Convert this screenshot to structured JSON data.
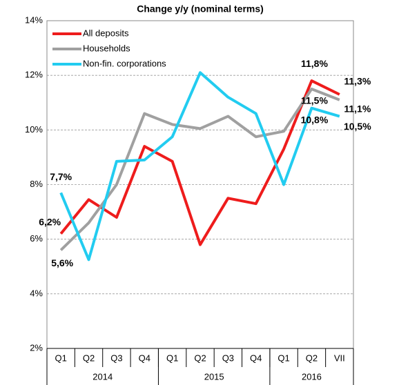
{
  "chart_data": {
    "type": "line",
    "title": "Change y/y (nominal terms)",
    "categories": [
      "Q1",
      "Q2",
      "Q3",
      "Q4",
      "Q1",
      "Q2",
      "Q3",
      "Q4",
      "Q1",
      "Q2",
      "VII"
    ],
    "x_groups": [
      {
        "label": "2014",
        "count": 4
      },
      {
        "label": "2015",
        "count": 4
      },
      {
        "label": "2016",
        "count": 3
      }
    ],
    "series": [
      {
        "name": "All deposits",
        "color": "#ee1c1c",
        "values": [
          6.2,
          7.45,
          6.8,
          9.4,
          8.85,
          5.8,
          7.5,
          7.3,
          9.3,
          11.8,
          11.3
        ],
        "value_labels": [
          "6,2%",
          null,
          null,
          null,
          null,
          null,
          null,
          null,
          null,
          "11,8%",
          "11,3%"
        ]
      },
      {
        "name": "Households",
        "color": "#a0a0a0",
        "values": [
          5.6,
          6.6,
          8.0,
          10.6,
          10.2,
          10.05,
          10.5,
          9.75,
          9.95,
          11.5,
          11.1
        ],
        "value_labels": [
          "5,6%",
          null,
          null,
          null,
          null,
          null,
          null,
          null,
          null,
          "11,5%",
          "11,1%"
        ]
      },
      {
        "name": "Non-fin. corporations",
        "color": "#22ccf0",
        "values": [
          7.7,
          5.25,
          8.85,
          8.9,
          9.75,
          12.1,
          11.2,
          10.6,
          8.0,
          10.8,
          10.5
        ],
        "value_labels": [
          "7,7%",
          null,
          null,
          null,
          null,
          null,
          null,
          null,
          null,
          "10,8%",
          "10,5%"
        ]
      }
    ],
    "ylim": [
      2,
      14
    ],
    "yticks": [
      {
        "value": 2,
        "label": "2%"
      },
      {
        "value": 4,
        "label": "4%"
      },
      {
        "value": 6,
        "label": "6%"
      },
      {
        "value": 8,
        "label": "8%"
      },
      {
        "value": 10,
        "label": "10%"
      },
      {
        "value": 12,
        "label": "12%"
      },
      {
        "value": 14,
        "label": "14%"
      }
    ],
    "grid": true,
    "legend": "top-left"
  }
}
